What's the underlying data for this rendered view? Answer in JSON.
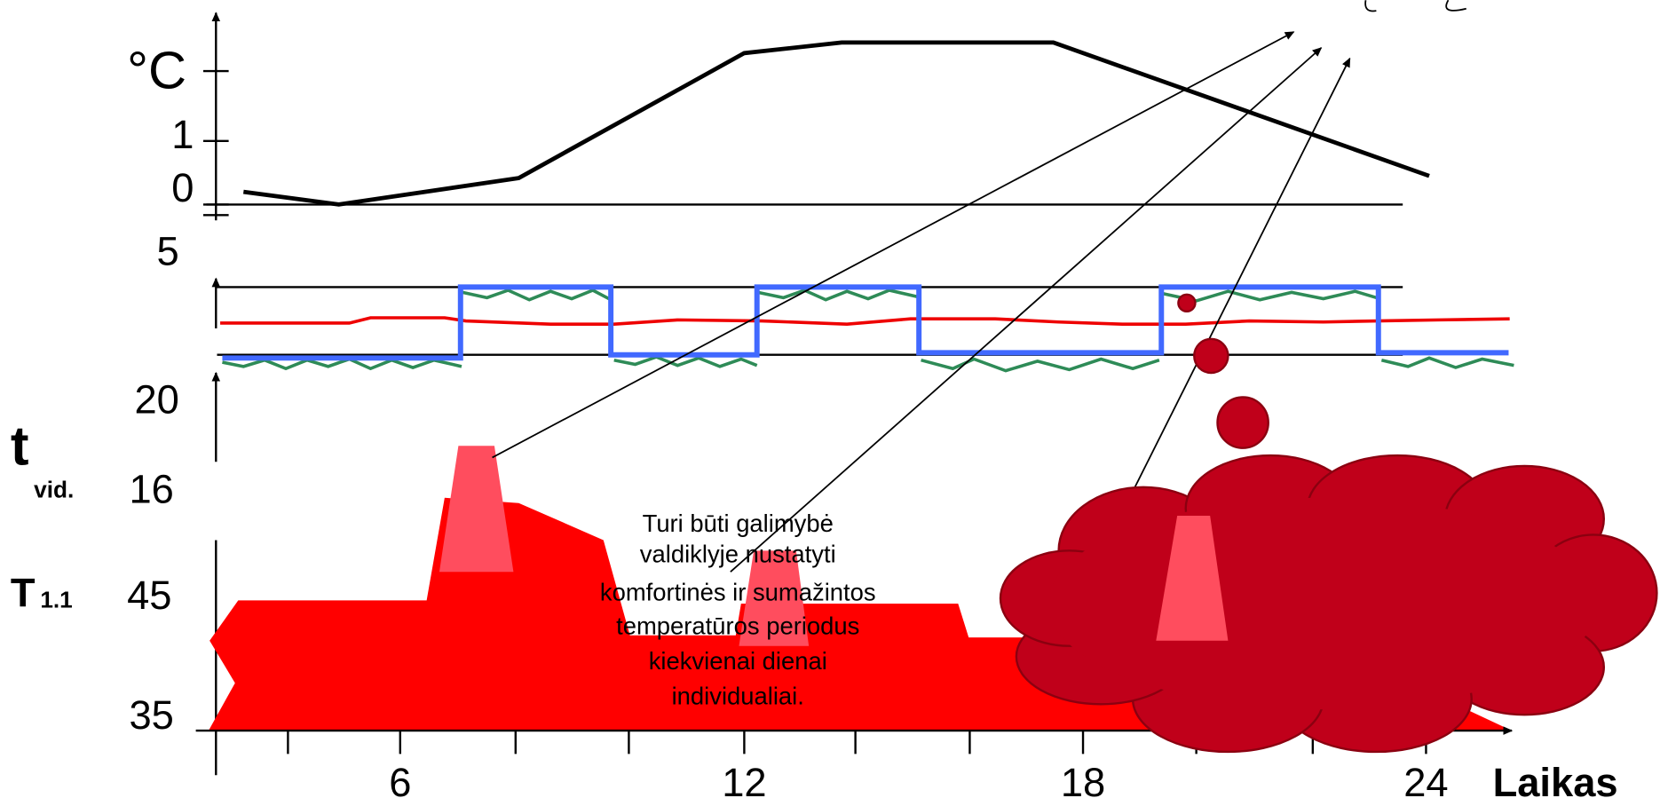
{
  "outdoor_axis": {
    "unit": "°C",
    "ticks": [
      "1",
      "0"
    ]
  },
  "room_axis": {
    "ticks": [
      "5",
      "20"
    ]
  },
  "indoor_axis": {
    "label": "t",
    "sub": "vid.",
    "tick": "16"
  },
  "supply_axis": {
    "label": "T",
    "sub": "1.1",
    "ticks": [
      "45",
      "35"
    ]
  },
  "time_axis": {
    "ticks": [
      "6",
      "12",
      "18",
      "24"
    ],
    "label": "Laikas"
  },
  "callout": {
    "lines": [
      "Turi būti galimybė",
      "valdiklyje nustatyti",
      "komfortinės ir sumažintos",
      "temperatūros periodus",
      "kiekvienai dienai",
      "individualiai."
    ]
  }
}
